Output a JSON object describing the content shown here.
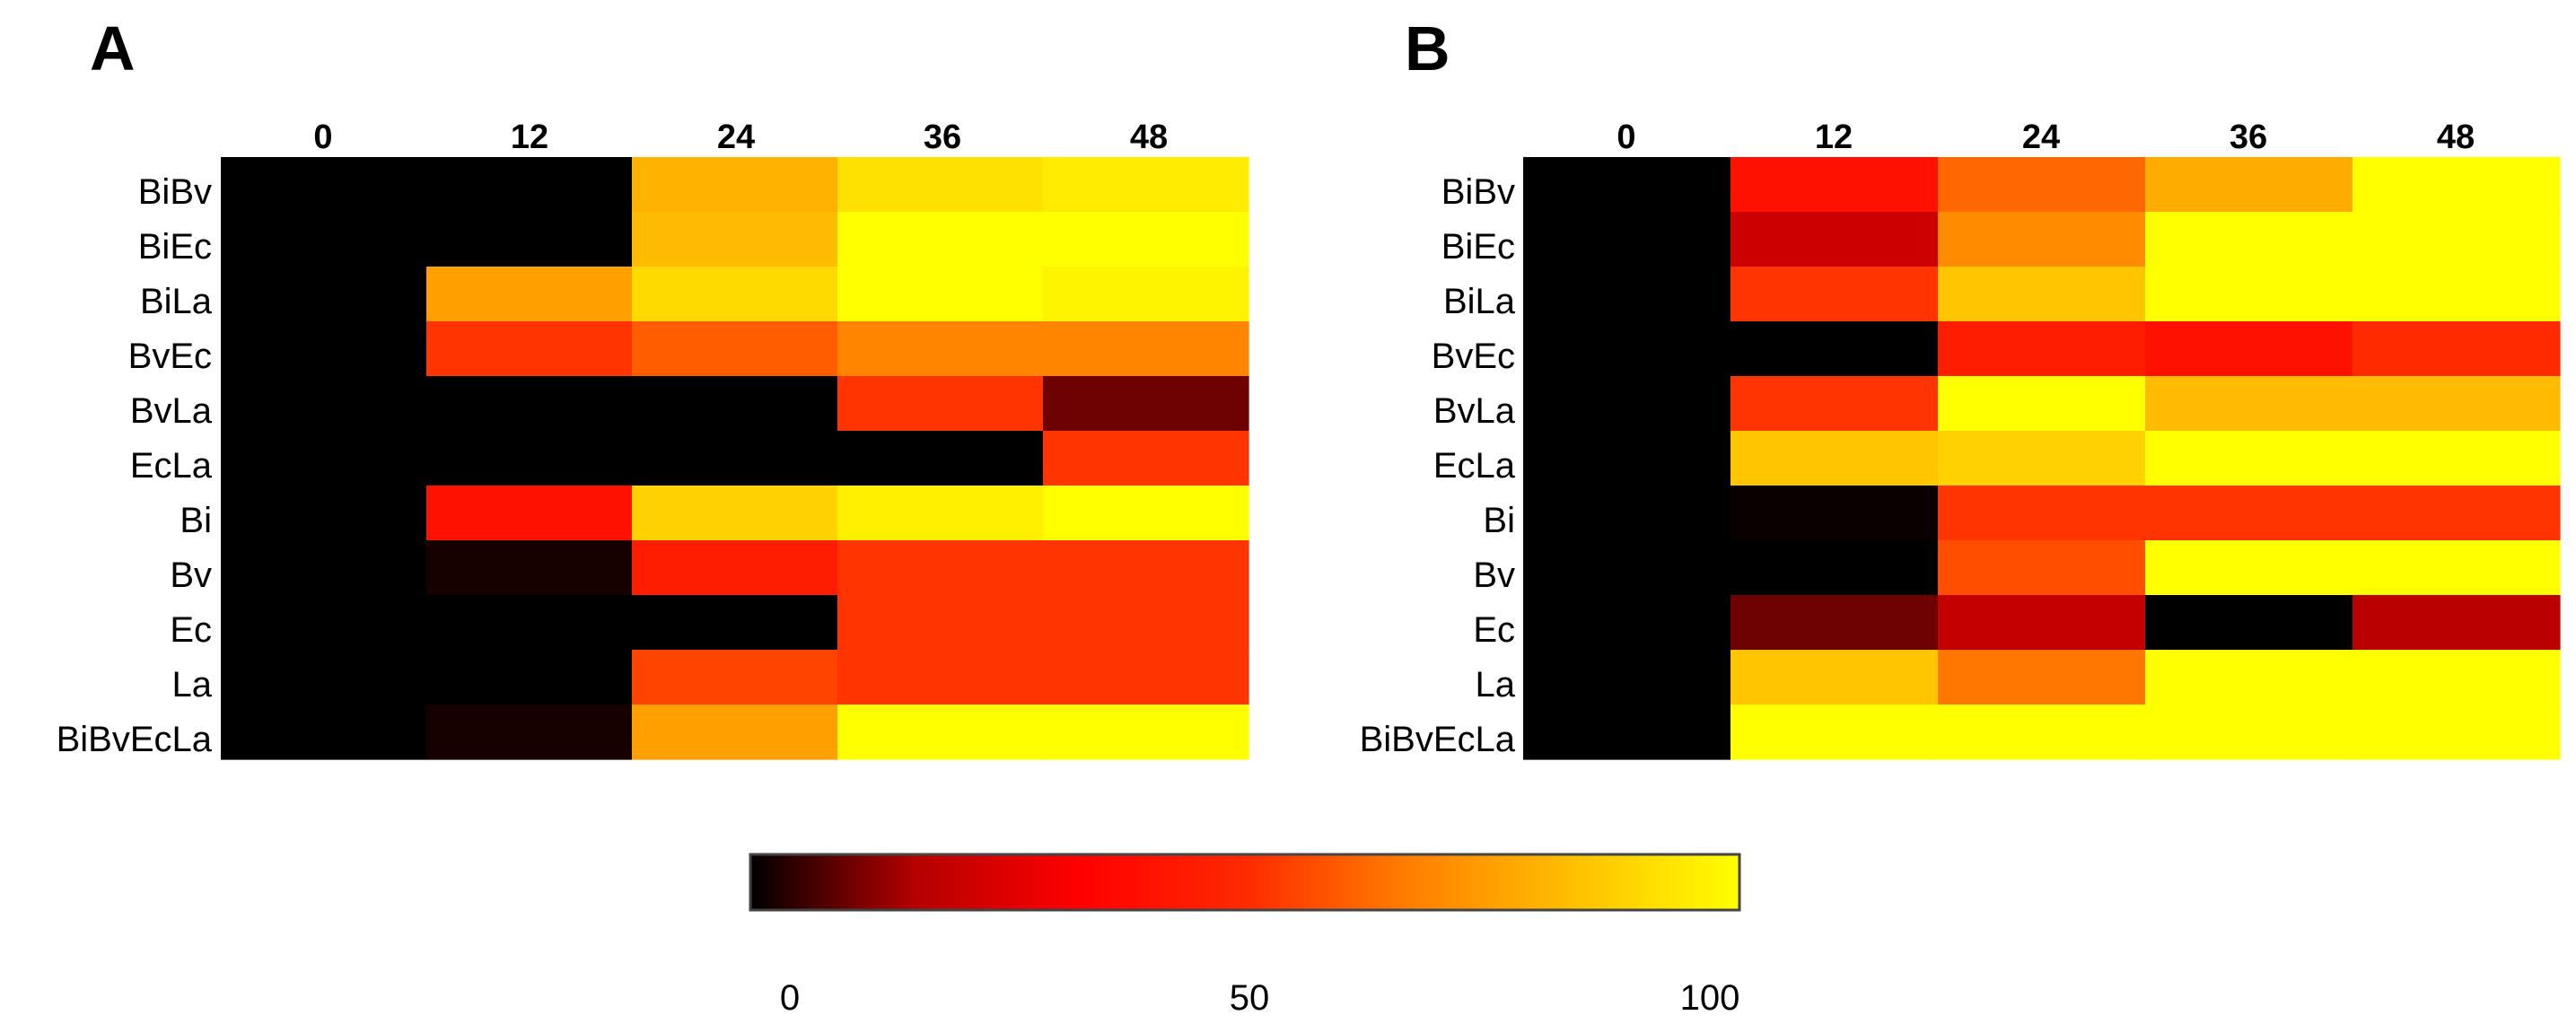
{
  "chart_data": [
    {
      "type": "heatmap",
      "panel_label": "A",
      "columns": [
        "0",
        "12",
        "24",
        "36",
        "48"
      ],
      "rows": [
        "BiBv",
        "BiEc",
        "BiLa",
        "BvEc",
        "BvLa",
        "EcLa",
        "Bi",
        "Bv",
        "Ec",
        "La",
        "BiBvEcLa"
      ],
      "values": [
        [
          0,
          0,
          80,
          92,
          95
        ],
        [
          0,
          0,
          82,
          100,
          100
        ],
        [
          0,
          75,
          90,
          100,
          97
        ],
        [
          0,
          52,
          60,
          68,
          68
        ],
        [
          0,
          0,
          0,
          52,
          10
        ],
        [
          0,
          0,
          0,
          0,
          52
        ],
        [
          0,
          40,
          88,
          96,
          100
        ],
        [
          0,
          2,
          45,
          52,
          52
        ],
        [
          0,
          0,
          0,
          52,
          52
        ],
        [
          0,
          0,
          55,
          52,
          52
        ],
        [
          0,
          2,
          75,
          100,
          100
        ]
      ]
    },
    {
      "type": "heatmap",
      "panel_label": "B",
      "columns": [
        "0",
        "12",
        "24",
        "36",
        "48"
      ],
      "rows": [
        "BiBv",
        "BiEc",
        "BiLa",
        "BvEc",
        "BvLa",
        "EcLa",
        "Bi",
        "Bv",
        "Ec",
        "La",
        "BiBvEcLa"
      ],
      "values": [
        [
          0,
          40,
          62,
          78,
          100
        ],
        [
          0,
          22,
          70,
          100,
          100
        ],
        [
          0,
          52,
          85,
          100,
          100
        ],
        [
          0,
          0,
          45,
          40,
          50
        ],
        [
          0,
          52,
          100,
          82,
          82
        ],
        [
          0,
          85,
          88,
          100,
          100
        ],
        [
          0,
          1,
          52,
          52,
          52
        ],
        [
          0,
          0,
          57,
          100,
          100
        ],
        [
          0,
          10,
          20,
          0,
          18
        ],
        [
          0,
          85,
          65,
          100,
          100
        ],
        [
          0,
          100,
          100,
          100,
          100
        ]
      ]
    }
  ],
  "colorbar": {
    "min": 0,
    "max": 100,
    "ticks": [
      "0",
      "50",
      "100"
    ],
    "stops": [
      "#000000",
      "#B50000",
      "#FF0000",
      "#FF2A00",
      "#FF7F00",
      "#FFC000",
      "#FFFF00"
    ]
  }
}
